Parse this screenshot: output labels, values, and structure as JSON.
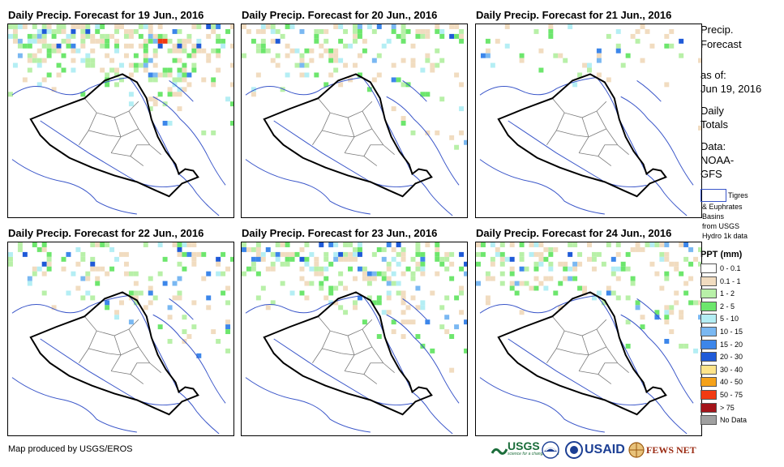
{
  "panels": [
    {
      "title": "Daily Precip. Forecast for 19 Jun., 2016"
    },
    {
      "title": "Daily Precip. Forecast for 20 Jun., 2016"
    },
    {
      "title": "Daily Precip. Forecast for 21 Jun., 2016"
    },
    {
      "title": "Daily Precip. Forecast for 22 Jun., 2016"
    },
    {
      "title": "Daily Precip. Forecast for 23 Jun., 2016"
    },
    {
      "title": "Daily Precip. Forecast for 24 Jun., 2016"
    }
  ],
  "sidebar": {
    "title_line1": "Precip.",
    "title_line2": "Forecast",
    "asof_label": "as of:",
    "asof_date": "Jun 19, 2016",
    "totals_line1": "Daily",
    "totals_line2": "Totals",
    "data_line1": "Data:",
    "data_line2": "NOAA-",
    "data_line3": "GFS",
    "basin_line1": "Tigres",
    "basin_line2": "& Euphrates",
    "basin_line3": "Basins",
    "basin_line4": "from USGS",
    "basin_line5": "Hydro 1k data"
  },
  "legend": {
    "title": "PPT (mm)",
    "items": [
      {
        "label": "0 - 0.1",
        "color": "#ffffff"
      },
      {
        "label": "0.1 - 1",
        "color": "#f1dcc0"
      },
      {
        "label": "1 - 2",
        "color": "#b8f0a8"
      },
      {
        "label": "2 - 5",
        "color": "#6de66d"
      },
      {
        "label": "5 - 10",
        "color": "#b4eef4"
      },
      {
        "label": "10 - 15",
        "color": "#7ab8f2"
      },
      {
        "label": "15 - 20",
        "color": "#3c86ea"
      },
      {
        "label": "20 - 30",
        "color": "#1f5ad8"
      },
      {
        "label": "30 - 40",
        "color": "#fde48a"
      },
      {
        "label": "40 - 50",
        "color": "#f5a21a"
      },
      {
        "label": "50 - 75",
        "color": "#f23a12"
      },
      {
        "label": "> 75",
        "color": "#a4141a"
      },
      {
        "label": "No Data",
        "color": "#a0a0a0"
      }
    ]
  },
  "footer": {
    "credit": "Map produced by USGS/EROS"
  },
  "logos": {
    "usgs": "USGS",
    "usgs_tag": "science for a changing world",
    "noaa": "NOAA",
    "usaid": "USAID",
    "fews": "FEWS NET"
  }
}
